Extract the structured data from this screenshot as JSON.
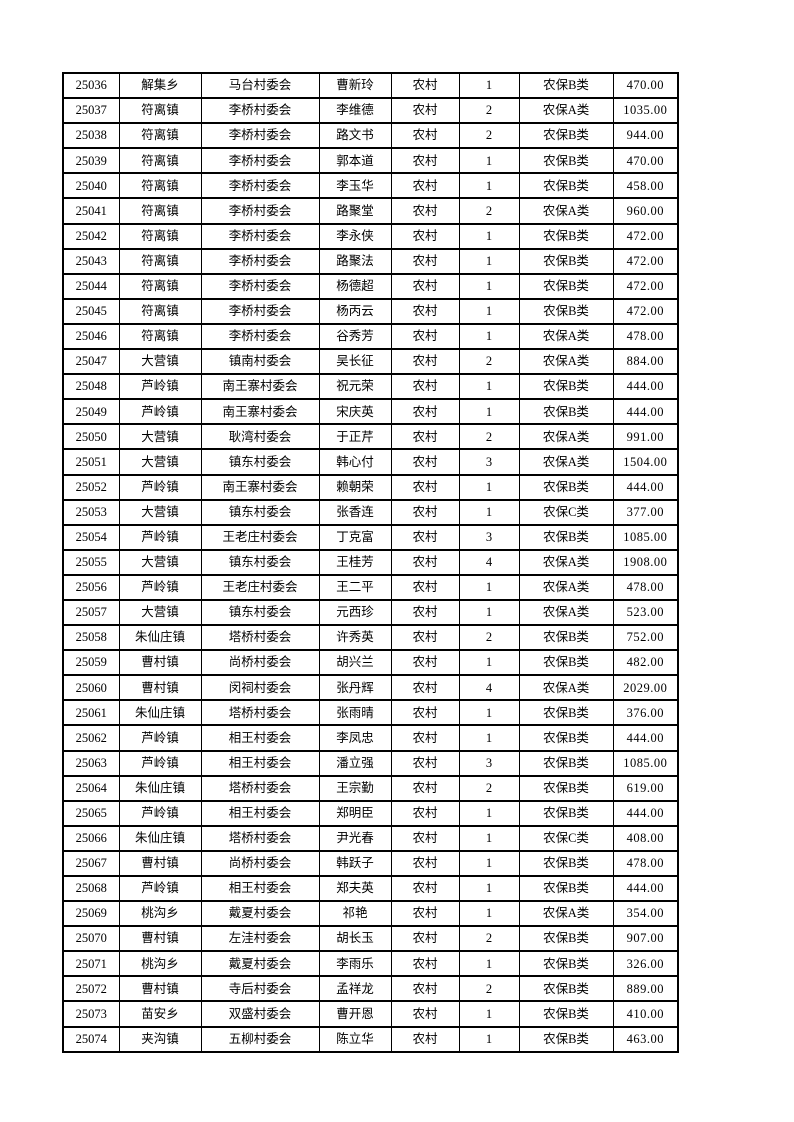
{
  "document": {
    "rows": [
      {
        "id": "25036",
        "town": "解集乡",
        "village": "马台村委会",
        "name": "曹新玲",
        "residence": "农村",
        "count": "1",
        "category": "农保B类",
        "amount": "470.00"
      },
      {
        "id": "25037",
        "town": "符离镇",
        "village": "李桥村委会",
        "name": "李维德",
        "residence": "农村",
        "count": "2",
        "category": "农保A类",
        "amount": "1035.00"
      },
      {
        "id": "25038",
        "town": "符离镇",
        "village": "李桥村委会",
        "name": "路文书",
        "residence": "农村",
        "count": "2",
        "category": "农保B类",
        "amount": "944.00"
      },
      {
        "id": "25039",
        "town": "符离镇",
        "village": "李桥村委会",
        "name": "郭本道",
        "residence": "农村",
        "count": "1",
        "category": "农保B类",
        "amount": "470.00"
      },
      {
        "id": "25040",
        "town": "符离镇",
        "village": "李桥村委会",
        "name": "李玉华",
        "residence": "农村",
        "count": "1",
        "category": "农保B类",
        "amount": "458.00"
      },
      {
        "id": "25041",
        "town": "符离镇",
        "village": "李桥村委会",
        "name": "路聚堂",
        "residence": "农村",
        "count": "2",
        "category": "农保A类",
        "amount": "960.00"
      },
      {
        "id": "25042",
        "town": "符离镇",
        "village": "李桥村委会",
        "name": "李永侠",
        "residence": "农村",
        "count": "1",
        "category": "农保B类",
        "amount": "472.00"
      },
      {
        "id": "25043",
        "town": "符离镇",
        "village": "李桥村委会",
        "name": "路聚法",
        "residence": "农村",
        "count": "1",
        "category": "农保B类",
        "amount": "472.00"
      },
      {
        "id": "25044",
        "town": "符离镇",
        "village": "李桥村委会",
        "name": "杨德超",
        "residence": "农村",
        "count": "1",
        "category": "农保B类",
        "amount": "472.00"
      },
      {
        "id": "25045",
        "town": "符离镇",
        "village": "李桥村委会",
        "name": "杨丙云",
        "residence": "农村",
        "count": "1",
        "category": "农保B类",
        "amount": "472.00"
      },
      {
        "id": "25046",
        "town": "符离镇",
        "village": "李桥村委会",
        "name": "谷秀芳",
        "residence": "农村",
        "count": "1",
        "category": "农保A类",
        "amount": "478.00"
      },
      {
        "id": "25047",
        "town": "大营镇",
        "village": "镇南村委会",
        "name": "吴长征",
        "residence": "农村",
        "count": "2",
        "category": "农保A类",
        "amount": "884.00"
      },
      {
        "id": "25048",
        "town": "芦岭镇",
        "village": "南王寨村委会",
        "name": "祝元荣",
        "residence": "农村",
        "count": "1",
        "category": "农保B类",
        "amount": "444.00"
      },
      {
        "id": "25049",
        "town": "芦岭镇",
        "village": "南王寨村委会",
        "name": "宋庆英",
        "residence": "农村",
        "count": "1",
        "category": "农保B类",
        "amount": "444.00"
      },
      {
        "id": "25050",
        "town": "大营镇",
        "village": "耿湾村委会",
        "name": "于正芹",
        "residence": "农村",
        "count": "2",
        "category": "农保A类",
        "amount": "991.00"
      },
      {
        "id": "25051",
        "town": "大营镇",
        "village": "镇东村委会",
        "name": "韩心付",
        "residence": "农村",
        "count": "3",
        "category": "农保A类",
        "amount": "1504.00"
      },
      {
        "id": "25052",
        "town": "芦岭镇",
        "village": "南王寨村委会",
        "name": "赖朝荣",
        "residence": "农村",
        "count": "1",
        "category": "农保B类",
        "amount": "444.00"
      },
      {
        "id": "25053",
        "town": "大营镇",
        "village": "镇东村委会",
        "name": "张香连",
        "residence": "农村",
        "count": "1",
        "category": "农保C类",
        "amount": "377.00"
      },
      {
        "id": "25054",
        "town": "芦岭镇",
        "village": "王老庄村委会",
        "name": "丁克富",
        "residence": "农村",
        "count": "3",
        "category": "农保B类",
        "amount": "1085.00"
      },
      {
        "id": "25055",
        "town": "大营镇",
        "village": "镇东村委会",
        "name": "王桂芳",
        "residence": "农村",
        "count": "4",
        "category": "农保A类",
        "amount": "1908.00"
      },
      {
        "id": "25056",
        "town": "芦岭镇",
        "village": "王老庄村委会",
        "name": "王二平",
        "residence": "农村",
        "count": "1",
        "category": "农保A类",
        "amount": "478.00"
      },
      {
        "id": "25057",
        "town": "大营镇",
        "village": "镇东村委会",
        "name": "元西珍",
        "residence": "农村",
        "count": "1",
        "category": "农保A类",
        "amount": "523.00"
      },
      {
        "id": "25058",
        "town": "朱仙庄镇",
        "village": "塔桥村委会",
        "name": "许秀英",
        "residence": "农村",
        "count": "2",
        "category": "农保B类",
        "amount": "752.00"
      },
      {
        "id": "25059",
        "town": "曹村镇",
        "village": "尚桥村委会",
        "name": "胡兴兰",
        "residence": "农村",
        "count": "1",
        "category": "农保B类",
        "amount": "482.00"
      },
      {
        "id": "25060",
        "town": "曹村镇",
        "village": "闵祠村委会",
        "name": "张丹辉",
        "residence": "农村",
        "count": "4",
        "category": "农保A类",
        "amount": "2029.00"
      },
      {
        "id": "25061",
        "town": "朱仙庄镇",
        "village": "塔桥村委会",
        "name": "张雨晴",
        "residence": "农村",
        "count": "1",
        "category": "农保B类",
        "amount": "376.00"
      },
      {
        "id": "25062",
        "town": "芦岭镇",
        "village": "相王村委会",
        "name": "李凤忠",
        "residence": "农村",
        "count": "1",
        "category": "农保B类",
        "amount": "444.00"
      },
      {
        "id": "25063",
        "town": "芦岭镇",
        "village": "相王村委会",
        "name": "潘立强",
        "residence": "农村",
        "count": "3",
        "category": "农保B类",
        "amount": "1085.00"
      },
      {
        "id": "25064",
        "town": "朱仙庄镇",
        "village": "塔桥村委会",
        "name": "王宗勤",
        "residence": "农村",
        "count": "2",
        "category": "农保B类",
        "amount": "619.00"
      },
      {
        "id": "25065",
        "town": "芦岭镇",
        "village": "相王村委会",
        "name": "郑明臣",
        "residence": "农村",
        "count": "1",
        "category": "农保B类",
        "amount": "444.00"
      },
      {
        "id": "25066",
        "town": "朱仙庄镇",
        "village": "塔桥村委会",
        "name": "尹光春",
        "residence": "农村",
        "count": "1",
        "category": "农保C类",
        "amount": "408.00"
      },
      {
        "id": "25067",
        "town": "曹村镇",
        "village": "尚桥村委会",
        "name": "韩跃子",
        "residence": "农村",
        "count": "1",
        "category": "农保B类",
        "amount": "478.00"
      },
      {
        "id": "25068",
        "town": "芦岭镇",
        "village": "相王村委会",
        "name": "郑夫英",
        "residence": "农村",
        "count": "1",
        "category": "农保B类",
        "amount": "444.00"
      },
      {
        "id": "25069",
        "town": "桃沟乡",
        "village": "戴夏村委会",
        "name": "祁艳",
        "residence": "农村",
        "count": "1",
        "category": "农保A类",
        "amount": "354.00"
      },
      {
        "id": "25070",
        "town": "曹村镇",
        "village": "左洼村委会",
        "name": "胡长玉",
        "residence": "农村",
        "count": "2",
        "category": "农保B类",
        "amount": "907.00"
      },
      {
        "id": "25071",
        "town": "桃沟乡",
        "village": "戴夏村委会",
        "name": "李雨乐",
        "residence": "农村",
        "count": "1",
        "category": "农保B类",
        "amount": "326.00"
      },
      {
        "id": "25072",
        "town": "曹村镇",
        "village": "寺后村委会",
        "name": "孟祥龙",
        "residence": "农村",
        "count": "2",
        "category": "农保B类",
        "amount": "889.00"
      },
      {
        "id": "25073",
        "town": "苗安乡",
        "village": "双盛村委会",
        "name": "曹开恩",
        "residence": "农村",
        "count": "1",
        "category": "农保B类",
        "amount": "410.00"
      },
      {
        "id": "25074",
        "town": "夹沟镇",
        "village": "五柳村委会",
        "name": "陈立华",
        "residence": "农村",
        "count": "1",
        "category": "农保B类",
        "amount": "463.00"
      }
    ]
  }
}
